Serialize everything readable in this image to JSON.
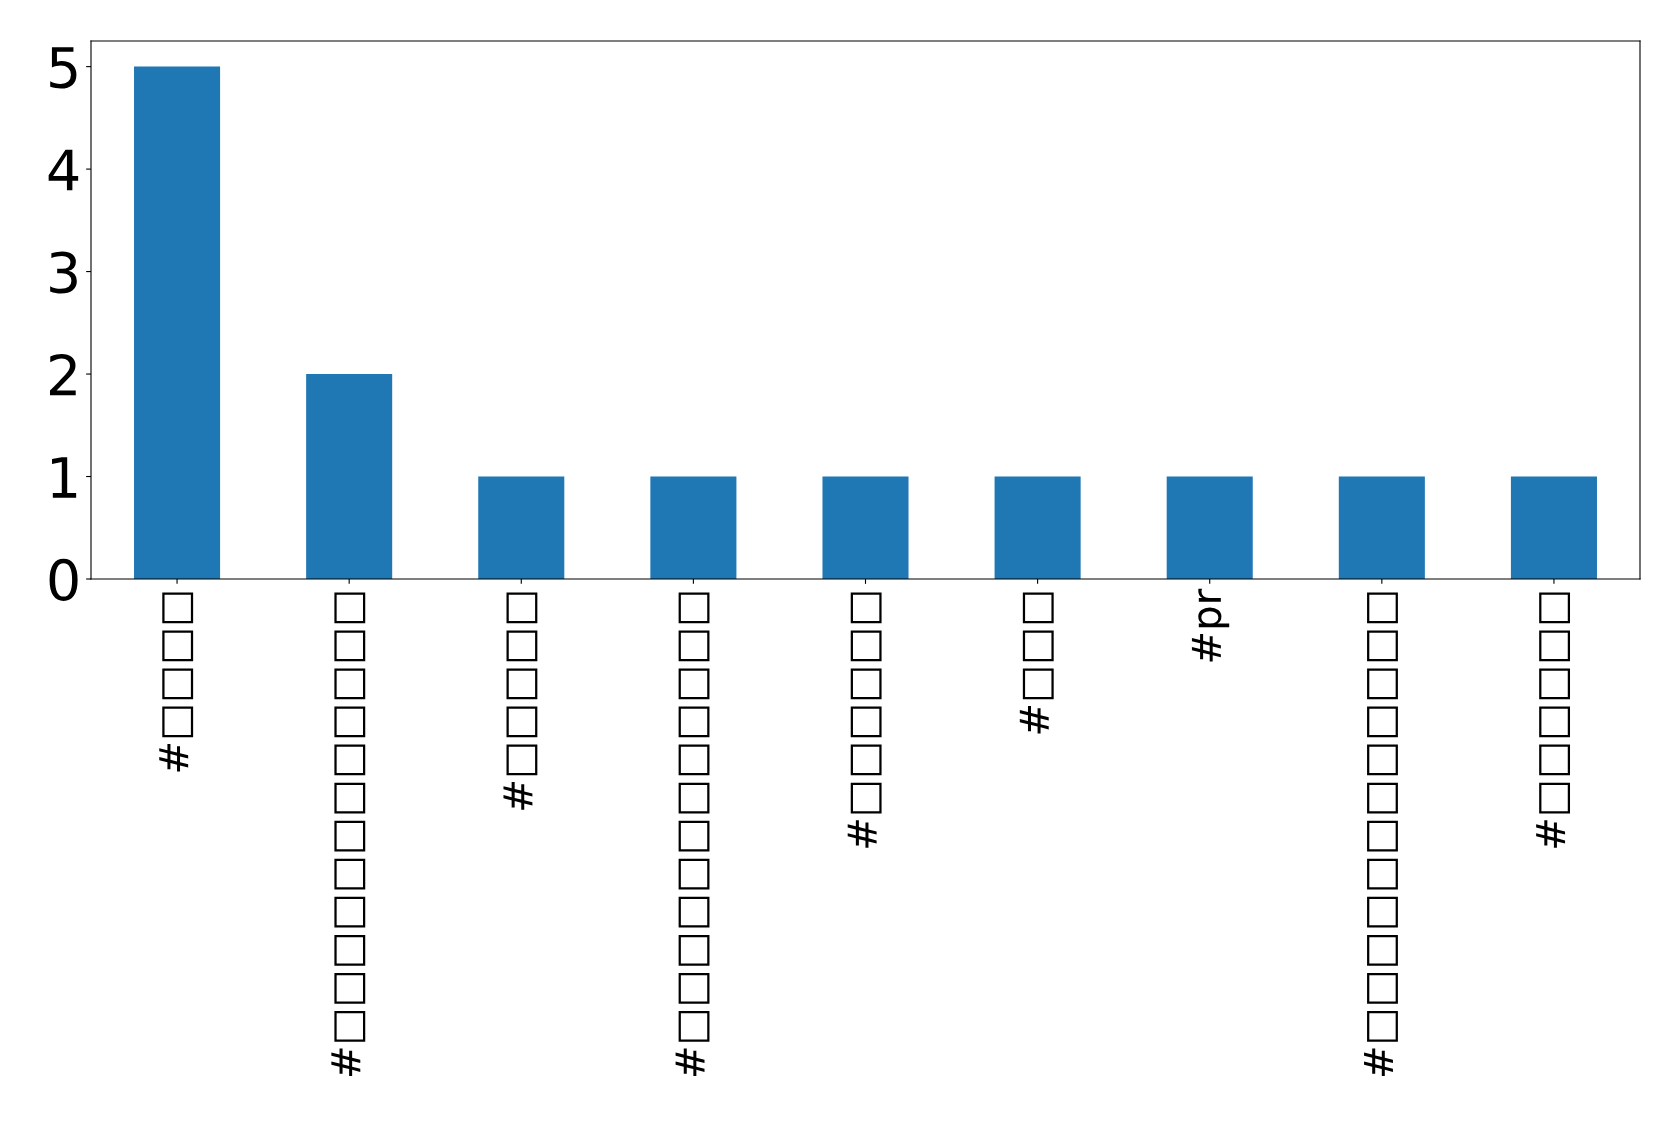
{
  "chart_data": {
    "type": "bar",
    "categories": [
      "#□□□□",
      "#□□□□□□□□□□□□",
      "#□□□□□",
      "#□□□□□□□□□□□□",
      "#□□□□□□",
      "#□□□",
      "#pr",
      "#□□□□□□□□□□□□",
      "#□□□□□□"
    ],
    "values": [
      5,
      2,
      1,
      1,
      1,
      1,
      1,
      1,
      1
    ],
    "color": "#1f77b4",
    "ylim": [
      0,
      5.25
    ],
    "yticks": [
      0,
      1,
      2,
      3,
      4,
      5
    ],
    "grid": false,
    "legend": false
  }
}
